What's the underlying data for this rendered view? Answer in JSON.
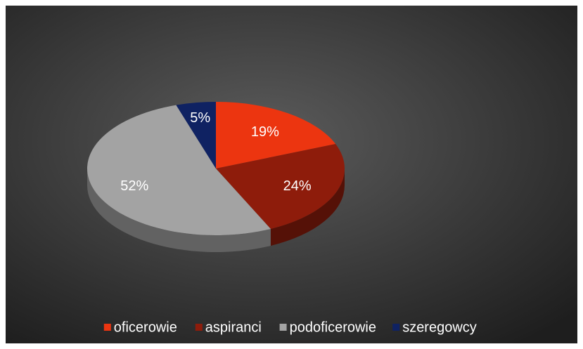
{
  "chart_data": {
    "type": "pie",
    "categories": [
      "oficerowie",
      "aspiranci",
      "podoficerowie",
      "szeregowcy"
    ],
    "values": [
      19,
      24,
      52,
      5
    ],
    "value_labels": [
      "19%",
      "24%",
      "52%",
      "5%"
    ],
    "colors": [
      "#ec3510",
      "#8e1c0b",
      "#a3a3a3",
      "#0f2262"
    ],
    "legend": "bottom"
  }
}
